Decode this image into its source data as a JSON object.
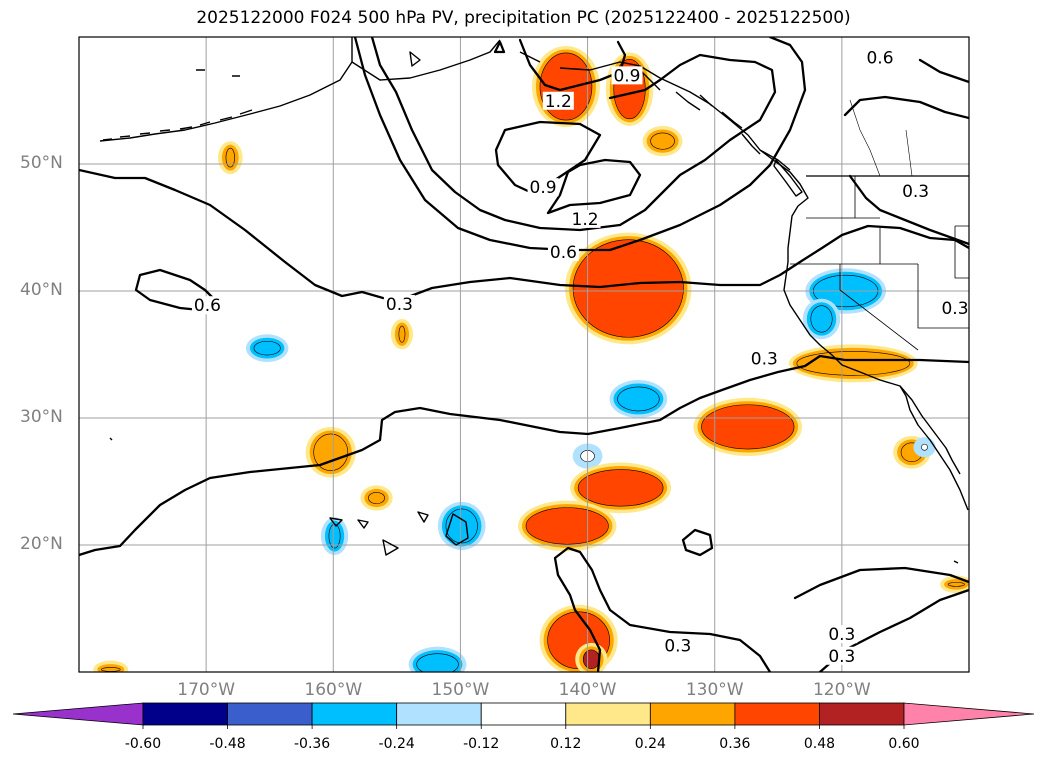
{
  "title": "2025122000 F024 500 hPa PV, precipitation PC (2025122400 - 2025122500)",
  "extent": {
    "lon_min": -180,
    "lon_max": -110,
    "lat_min": 10,
    "lat_max": 60
  },
  "lat_labels": [
    {
      "lat": 50,
      "text": "50°N"
    },
    {
      "lat": 40,
      "text": "40°N"
    },
    {
      "lat": 30,
      "text": "30°N"
    },
    {
      "lat": 20,
      "text": "20°N"
    }
  ],
  "lon_labels": [
    {
      "lon": -170,
      "text": "170°W"
    },
    {
      "lon": -160,
      "text": "160°W"
    },
    {
      "lon": -150,
      "text": "150°W"
    },
    {
      "lon": -140,
      "text": "140°W"
    },
    {
      "lon": -130,
      "text": "130°W"
    },
    {
      "lon": -120,
      "text": "120°W"
    }
  ],
  "colorbar": {
    "ticks": [
      "-0.60",
      "-0.48",
      "-0.36",
      "-0.24",
      "-0.12",
      "0.12",
      "0.24",
      "0.36",
      "0.48",
      "0.60"
    ],
    "colors": [
      "#9932CC",
      "#00008B",
      "#3A5FCD",
      "#00BFFF",
      "#B0E2FF",
      "#FFFFFF",
      "#FFE88A",
      "#FFA500",
      "#FF4500",
      "#B22222",
      "#FF82AB"
    ]
  },
  "contour_labels": [
    {
      "text": "1.2",
      "lon": -142.3,
      "lat": 54.9
    },
    {
      "text": "0.9",
      "lon": -136.9,
      "lat": 56.9
    },
    {
      "text": "0.6",
      "lon": -117.0,
      "lat": 58.3
    },
    {
      "text": "0.9",
      "lon": -143.5,
      "lat": 48.1
    },
    {
      "text": "1.2",
      "lon": -140.2,
      "lat": 45.6
    },
    {
      "text": "0.6",
      "lon": -141.9,
      "lat": 43.0
    },
    {
      "text": "0.3",
      "lon": -114.2,
      "lat": 47.8
    },
    {
      "text": "0.3",
      "lon": -154.8,
      "lat": 38.9
    },
    {
      "text": "0.6",
      "lon": -169.9,
      "lat": 38.8
    },
    {
      "text": "0.3",
      "lon": -126.1,
      "lat": 34.6
    },
    {
      "text": "0.3",
      "lon": -111.1,
      "lat": 38.6
    },
    {
      "text": "0.3",
      "lon": -132.9,
      "lat": 12.0
    },
    {
      "text": "0.3",
      "lon": -120.0,
      "lat": 12.9
    },
    {
      "text": "0.3",
      "lon": -120.0,
      "lat": 11.2
    }
  ],
  "precip_areas": [
    {
      "value": 0.36,
      "lon": -141.7,
      "lat": 56.1,
      "rx": 2.2,
      "ry": 2.8
    },
    {
      "value": 0.36,
      "lon": -136.7,
      "lat": 55.9,
      "rx": 1.4,
      "ry": 2.5
    },
    {
      "value": 0.24,
      "lon": -134.1,
      "lat": 51.8,
      "rx": 1.1,
      "ry": 0.8
    },
    {
      "value": 0.24,
      "lon": -168.1,
      "lat": 50.5,
      "rx": 0.5,
      "ry": 0.9
    },
    {
      "value": 0.36,
      "lon": -136.8,
      "lat": 40.2,
      "rx": 4.5,
      "ry": 4.0
    },
    {
      "value": 0.24,
      "lon": -154.6,
      "lat": 36.6,
      "rx": 0.4,
      "ry": 0.8
    },
    {
      "value": -0.36,
      "lon": -119.7,
      "lat": 40.0,
      "rx": 2.7,
      "ry": 1.4
    },
    {
      "value": -0.36,
      "lon": -121.6,
      "lat": 37.8,
      "rx": 1.0,
      "ry": 1.2
    },
    {
      "value": -0.36,
      "lon": -165.2,
      "lat": 35.5,
      "rx": 1.2,
      "ry": 0.7
    },
    {
      "value": 0.24,
      "lon": -119.1,
      "lat": 34.3,
      "rx": 4.6,
      "ry": 1.1
    },
    {
      "value": -0.36,
      "lon": -136.0,
      "lat": 31.5,
      "rx": 1.8,
      "ry": 1.1
    },
    {
      "value": 0.36,
      "lon": -127.4,
      "lat": 29.3,
      "rx": 3.8,
      "ry": 1.9
    },
    {
      "value": 0.24,
      "lon": -160.2,
      "lat": 27.3,
      "rx": 1.5,
      "ry": 1.6
    },
    {
      "value": -0.12,
      "lon": -140.0,
      "lat": 27.0,
      "rx": 0.7,
      "ry": 0.6
    },
    {
      "value": 0.24,
      "lon": -114.5,
      "lat": 27.3,
      "rx": 1.0,
      "ry": 0.9
    },
    {
      "value": 0.36,
      "lon": -137.4,
      "lat": 24.5,
      "rx": 3.5,
      "ry": 1.6
    },
    {
      "value": 0.24,
      "lon": -156.6,
      "lat": 23.7,
      "rx": 0.8,
      "ry": 0.6
    },
    {
      "value": 0.36,
      "lon": -141.6,
      "lat": 21.5,
      "rx": 3.4,
      "ry": 1.6
    },
    {
      "value": -0.36,
      "lon": -149.9,
      "lat": 21.5,
      "rx": 1.4,
      "ry": 1.5
    },
    {
      "value": -0.36,
      "lon": -159.9,
      "lat": 20.7,
      "rx": 0.6,
      "ry": 1.1
    },
    {
      "value": 0.36,
      "lon": -140.7,
      "lat": 12.5,
      "rx": 2.6,
      "ry": 2.4
    },
    {
      "value": 0.48,
      "lon": -139.7,
      "lat": 11.0,
      "rx": 0.8,
      "ry": 0.9
    },
    {
      "value": -0.36,
      "lon": -151.8,
      "lat": 10.6,
      "rx": 1.8,
      "ry": 1.0
    },
    {
      "value": 0.24,
      "lon": -111.0,
      "lat": 16.9,
      "rx": 0.8,
      "ry": 0.3
    },
    {
      "value": -0.12,
      "lon": -113.5,
      "lat": 27.7,
      "rx": 0.4,
      "ry": 0.4
    },
    {
      "value": 0.24,
      "lon": -177.5,
      "lat": 10.2,
      "rx": 0.9,
      "ry": 0.3
    }
  ]
}
